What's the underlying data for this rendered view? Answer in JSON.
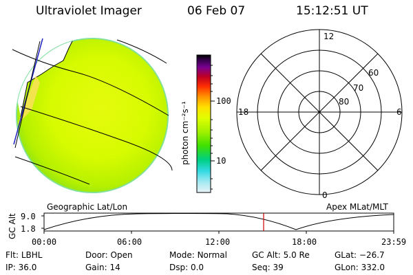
{
  "header": {
    "title": "Ultraviolet Imager",
    "date": "06 Feb 07",
    "time": "15:12:51 UT"
  },
  "colorbar": {
    "unit_label": "photon cm⁻²s⁻¹",
    "ticks": [
      "100",
      "10"
    ],
    "colors": [
      "#000000",
      "#3a0050",
      "#7a0090",
      "#c00020",
      "#ff3000",
      "#ff9000",
      "#ffe000",
      "#e0ff00",
      "#a0f000",
      "#40e000",
      "#00d080",
      "#30d8e0",
      "#a0e8f0",
      "#e8f4f8"
    ]
  },
  "polar": {
    "mlt_labels": [
      "12",
      "18",
      "6",
      "0"
    ],
    "lat_labels": [
      "60",
      "70",
      "80"
    ]
  },
  "timeline": {
    "left_label": "Geographic Lat/Lon",
    "right_label": "Apex MLat/MLT",
    "axis_label": "GC Alt",
    "y_ticks": [
      "9.0",
      "1.8"
    ],
    "x_ticks": [
      "00:00",
      "06:00",
      "12:00",
      "18:00",
      "23:59"
    ],
    "marker_color": "#cc0000"
  },
  "status": {
    "row1": [
      {
        "key": "Flt:",
        "value": "LBHL"
      },
      {
        "key": "Door:",
        "value": "Open"
      },
      {
        "key": "Mode:",
        "value": "Normal"
      },
      {
        "key": "GC Alt:",
        "value": "5.0 Re"
      },
      {
        "key": "GLat:",
        "value": "−26.7"
      }
    ],
    "row2": [
      {
        "key": "IP:",
        "value": "36.0"
      },
      {
        "key": "Gain:",
        "value": "14"
      },
      {
        "key": "Dsp:",
        "value": "0.0"
      },
      {
        "key": "Seq:",
        "value": "39"
      },
      {
        "key": "GLon:",
        "value": "332.0"
      }
    ]
  }
}
